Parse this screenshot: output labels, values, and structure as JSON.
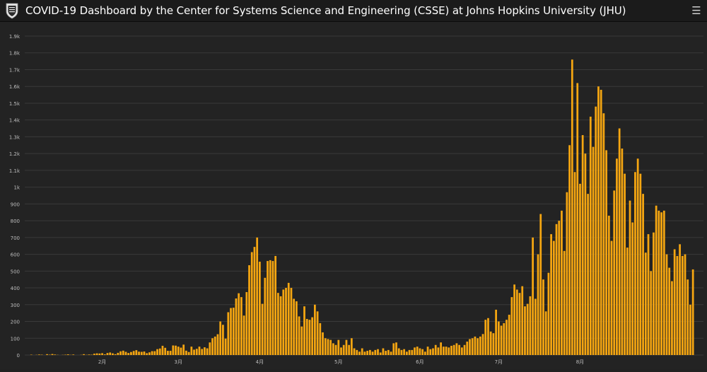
{
  "header": {
    "title": "COVID-19 Dashboard by the Center for Systems Science and Engineering (CSSE) at Johns Hopkins University (JHU)",
    "logo_icon": "jhu-shield-icon",
    "menu_icon": "hamburger-menu-icon"
  },
  "colors": {
    "bar": "#f5a611",
    "bar_stroke": "#b87a06",
    "grid": "#3a3a3a",
    "axis_text": "#bdbdbd"
  },
  "chart_data": {
    "type": "bar",
    "title": "",
    "xlabel": "",
    "ylabel": "",
    "ylim": [
      0,
      1900
    ],
    "yticks": [
      0,
      100,
      200,
      300,
      400,
      500,
      600,
      700,
      800,
      900,
      1000,
      1100,
      1200,
      1300,
      1400,
      1500,
      1600,
      1700,
      1800,
      1900
    ],
    "ytick_labels": [
      "0",
      "100",
      "200",
      "300",
      "400",
      "500",
      "600",
      "700",
      "800",
      "900",
      "1k",
      "1.1k",
      "1.2k",
      "1.3k",
      "1.4k",
      "1.5k",
      "1.6k",
      "1.7k",
      "1.8k",
      "1.9k"
    ],
    "xtick_labels": [
      {
        "label": "2月",
        "day": 29
      },
      {
        "label": "3月",
        "day": 58
      },
      {
        "label": "4月",
        "day": 89
      },
      {
        "label": "5月",
        "day": 119
      },
      {
        "label": "6月",
        "day": 150
      },
      {
        "label": "7月",
        "day": 180
      },
      {
        "label": "8月",
        "day": 211
      }
    ],
    "grid": true,
    "series": [
      {
        "values": [
          0,
          0,
          2,
          0,
          1,
          3,
          2,
          0,
          5,
          2,
          6,
          3,
          1,
          0,
          1,
          2,
          4,
          1,
          3,
          0,
          0,
          1,
          5,
          1,
          3,
          2,
          8,
          10,
          9,
          11,
          4,
          12,
          15,
          10,
          5,
          13,
          22,
          26,
          19,
          12,
          18,
          24,
          29,
          20,
          19,
          21,
          11,
          16,
          23,
          23,
          35,
          39,
          55,
          43,
          25,
          25,
          57,
          56,
          50,
          44,
          62,
          26,
          18,
          50,
          32,
          37,
          50,
          36,
          46,
          40,
          75,
          100,
          110,
          124,
          200,
          180,
          98,
          255,
          280,
          282,
          337,
          368,
          345,
          235,
          375,
          535,
          613,
          644,
          700,
          556,
          305,
          460,
          560,
          565,
          560,
          590,
          370,
          350,
          390,
          400,
          430,
          400,
          335,
          320,
          230,
          170,
          290,
          215,
          210,
          225,
          300,
          260,
          190,
          135,
          100,
          95,
          90,
          70,
          60,
          90,
          45,
          60,
          90,
          60,
          100,
          40,
          30,
          20,
          40,
          20,
          25,
          30,
          20,
          30,
          35,
          15,
          40,
          25,
          30,
          20,
          70,
          75,
          40,
          30,
          35,
          20,
          30,
          30,
          45,
          50,
          40,
          35,
          20,
          50,
          35,
          40,
          60,
          45,
          75,
          50,
          50,
          45,
          55,
          60,
          70,
          60,
          45,
          60,
          80,
          95,
          100,
          110,
          100,
          110,
          125,
          210,
          220,
          140,
          130,
          270,
          200,
          175,
          190,
          210,
          240,
          345,
          420,
          390,
          370,
          410,
          290,
          305,
          350,
          700,
          335,
          600,
          840,
          450,
          260,
          490,
          720,
          680,
          780,
          800,
          860,
          620,
          970,
          1250,
          1760,
          1090,
          1620,
          1020,
          1310,
          1200,
          960,
          1420,
          1240,
          1480,
          1600,
          1580,
          1440,
          1220,
          830,
          680,
          980,
          1170,
          1350,
          1230,
          1080,
          640,
          920,
          790,
          1090,
          1170,
          1080,
          960,
          610,
          720,
          500,
          730,
          890,
          860,
          850,
          860,
          600,
          520,
          440,
          630,
          590,
          660,
          590,
          600,
          450,
          300,
          510
        ]
      }
    ]
  }
}
